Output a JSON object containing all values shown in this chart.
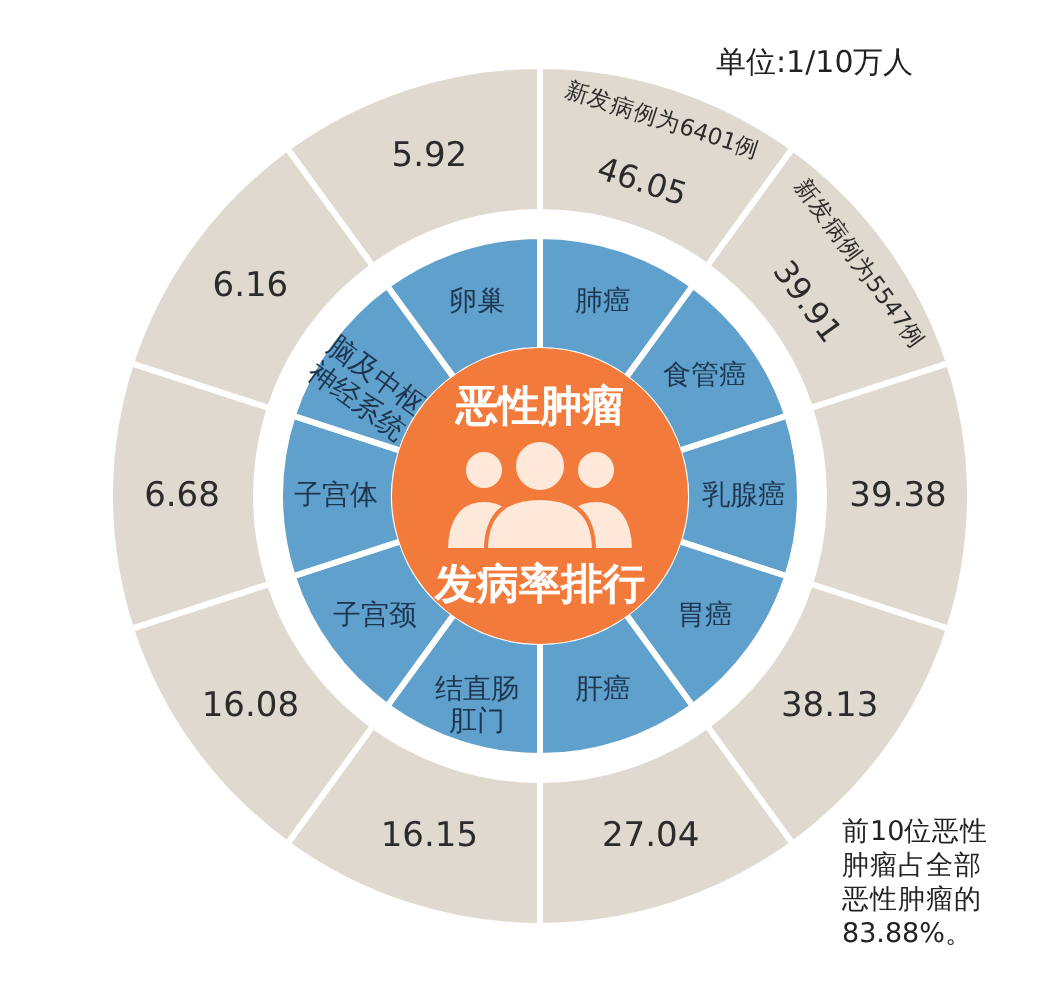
{
  "chart_data": {
    "type": "other",
    "title": "恶性肿瘤",
    "subtitle": "发病率排行",
    "categories": [
      "肺癌",
      "食管癌",
      "乳腺癌",
      "胃癌",
      "肝癌",
      "结直肠肛门",
      "子宫颈",
      "子宫体",
      "脑及中枢神经系统",
      "卵巢"
    ],
    "values": [
      46.05,
      39.91,
      39.38,
      38.13,
      27.04,
      16.15,
      16.08,
      6.68,
      6.16,
      5.92
    ],
    "color": "#e0d9d0",
    "data_labels": true,
    "annotations": [
      {
        "text": "新发病例为6401例",
        "x": "肺癌"
      },
      {
        "text": "新发病例为5547例",
        "x": "食管癌"
      },
      "单位:1/10万人",
      "前10位恶性肿瘤占全部恶性肿瘤的83.88%。"
    ]
  }
}
